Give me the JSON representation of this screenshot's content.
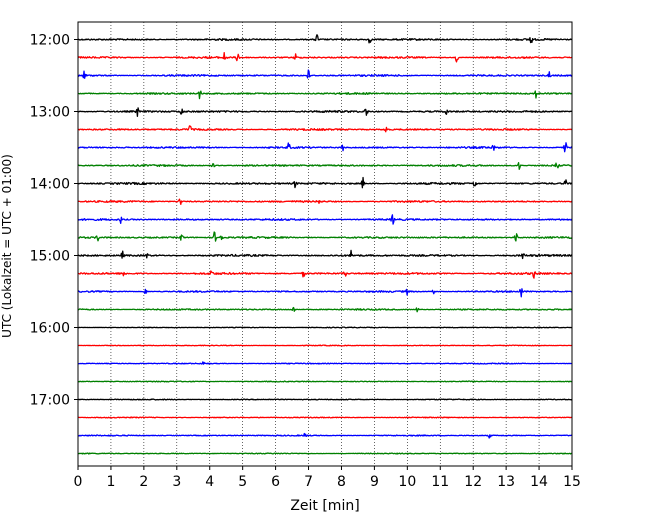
{
  "chart_data": {
    "type": "line",
    "title": "",
    "xlabel": "Zeit  [min]",
    "ylabel": "UTC (Lokalzeit = UTC + 01:00)",
    "xlim": [
      0,
      15
    ],
    "x_ticks": [
      0,
      1,
      2,
      3,
      4,
      5,
      6,
      7,
      8,
      9,
      10,
      11,
      12,
      13,
      14,
      15
    ],
    "x_tick_labels": [
      "0",
      "1",
      "2",
      "3",
      "4",
      "5",
      "6",
      "7",
      "8",
      "9",
      "10",
      "11",
      "12",
      "13",
      "14",
      "15"
    ],
    "y_tick_labels": [
      "12:00",
      "13:00",
      "14:00",
      "15:00",
      "16:00",
      "17:00"
    ],
    "y_tick_rows": [
      0,
      4,
      8,
      12,
      16,
      20
    ],
    "vertical_grid": "dotted",
    "line_colors": [
      "#000000",
      "#ff0000",
      "#0000ff",
      "#008000"
    ],
    "series": [
      {
        "start": "12:00",
        "noise": 0.55,
        "events": [
          [
            7.25,
            1.0
          ],
          [
            8.85,
            0.8
          ],
          [
            13.75,
            0.9
          ]
        ]
      },
      {
        "start": "12:15",
        "noise": 0.55,
        "events": [
          [
            4.45,
            0.8
          ],
          [
            4.85,
            1.0
          ],
          [
            6.6,
            0.6
          ],
          [
            11.5,
            0.7
          ]
        ]
      },
      {
        "start": "12:30",
        "noise": 0.55,
        "events": [
          [
            0.2,
            0.7
          ],
          [
            7.0,
            0.9
          ],
          [
            14.3,
            0.7
          ]
        ]
      },
      {
        "start": "12:45",
        "noise": 0.55,
        "events": [
          [
            3.7,
            0.8
          ],
          [
            13.9,
            0.6
          ]
        ]
      },
      {
        "start": "13:00",
        "noise": 0.6,
        "events": [
          [
            1.8,
            0.8
          ],
          [
            3.15,
            0.7
          ],
          [
            8.75,
            1.0
          ],
          [
            11.2,
            0.6
          ]
        ]
      },
      {
        "start": "13:15",
        "noise": 0.55,
        "events": [
          [
            3.4,
            0.9
          ],
          [
            9.35,
            0.7
          ]
        ]
      },
      {
        "start": "13:30",
        "noise": 0.55,
        "events": [
          [
            6.4,
            0.7
          ],
          [
            8.05,
            0.7
          ],
          [
            12.6,
            0.7
          ],
          [
            14.8,
            1.0
          ]
        ]
      },
      {
        "start": "13:45",
        "noise": 0.55,
        "events": [
          [
            4.1,
            0.6
          ],
          [
            13.4,
            0.7
          ],
          [
            14.55,
            1.0
          ]
        ]
      },
      {
        "start": "14:00",
        "noise": 0.6,
        "events": [
          [
            6.6,
            0.7
          ],
          [
            8.65,
            0.9
          ],
          [
            12.05,
            0.9
          ],
          [
            14.8,
            0.6
          ]
        ]
      },
      {
        "start": "14:15",
        "noise": 0.55,
        "events": [
          [
            3.1,
            0.9
          ],
          [
            7.3,
            0.5
          ]
        ]
      },
      {
        "start": "14:30",
        "noise": 0.55,
        "events": [
          [
            1.3,
            0.5
          ],
          [
            9.55,
            0.9
          ]
        ]
      },
      {
        "start": "14:45",
        "noise": 0.55,
        "events": [
          [
            0.6,
            0.6
          ],
          [
            3.15,
            0.7
          ],
          [
            4.15,
            1.0
          ],
          [
            4.35,
            0.8
          ],
          [
            13.3,
            0.9
          ]
        ]
      },
      {
        "start": "15:00",
        "noise": 0.6,
        "events": [
          [
            1.35,
            0.6
          ],
          [
            2.1,
            0.5
          ],
          [
            8.3,
            0.8
          ],
          [
            13.5,
            0.6
          ]
        ]
      },
      {
        "start": "15:15",
        "noise": 0.6,
        "events": [
          [
            1.4,
            0.7
          ],
          [
            4.05,
            0.6
          ],
          [
            6.85,
            0.6
          ],
          [
            8.1,
            0.8
          ],
          [
            13.85,
            0.7
          ]
        ]
      },
      {
        "start": "15:30",
        "noise": 0.5,
        "events": [
          [
            2.05,
            0.6
          ],
          [
            10.0,
            0.5
          ],
          [
            10.8,
            0.8
          ],
          [
            13.45,
            1.0
          ]
        ]
      },
      {
        "start": "15:45",
        "noise": 0.45,
        "events": [
          [
            6.55,
            0.6
          ],
          [
            10.3,
            0.4
          ]
        ]
      },
      {
        "start": "16:00",
        "noise": 0.25,
        "events": []
      },
      {
        "start": "16:15",
        "noise": 0.25,
        "events": []
      },
      {
        "start": "16:30",
        "noise": 0.3,
        "events": [
          [
            3.8,
            0.3
          ]
        ]
      },
      {
        "start": "16:45",
        "noise": 0.3,
        "events": []
      },
      {
        "start": "17:00",
        "noise": 0.3,
        "events": []
      },
      {
        "start": "17:15",
        "noise": 0.3,
        "events": []
      },
      {
        "start": "17:30",
        "noise": 0.35,
        "events": [
          [
            6.9,
            0.5
          ],
          [
            12.5,
            0.4
          ]
        ]
      },
      {
        "start": "17:45",
        "noise": 0.3,
        "events": []
      }
    ]
  }
}
